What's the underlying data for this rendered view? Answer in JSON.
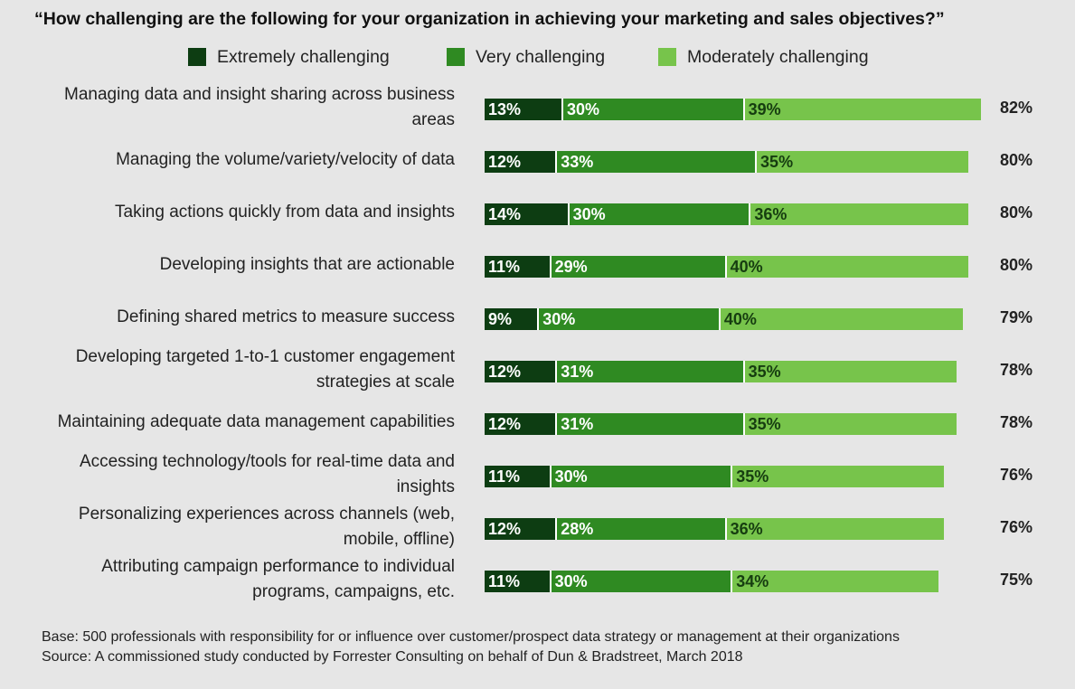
{
  "chart_data": {
    "type": "bar",
    "orientation": "horizontal",
    "stacked": true,
    "title": "“How challenging are the following for your organization in achieving your marketing and sales objectives?”",
    "categories": [
      "Managing data and insight sharing across business areas",
      "Managing the volume/variety/velocity of data",
      "Taking actions quickly from data and insights",
      "Developing insights that are actionable",
      "Defining shared metrics to measure success",
      "Developing targeted 1-to-1 customer engagement strategies at scale",
      "Maintaining adequate data management capabilities",
      "Accessing technology/tools for real-time data and insights",
      "Personalizing experiences across channels (web, mobile, offline)",
      "Attributing campaign performance to individual programs, campaigns, etc."
    ],
    "series": [
      {
        "name": "Extremely challenging",
        "color": "#0d3d12",
        "values": [
          13,
          12,
          14,
          11,
          9,
          12,
          12,
          11,
          12,
          11
        ]
      },
      {
        "name": "Very challenging",
        "color": "#2f8a22",
        "values": [
          30,
          33,
          30,
          29,
          30,
          31,
          31,
          30,
          28,
          30
        ]
      },
      {
        "name": "Moderately challenging",
        "color": "#77c44b",
        "values": [
          39,
          35,
          36,
          40,
          40,
          35,
          35,
          35,
          36,
          34
        ]
      }
    ],
    "totals": [
      82,
      80,
      80,
      80,
      79,
      78,
      78,
      76,
      76,
      75
    ],
    "value_unit": "%",
    "legend_position": "top",
    "grid": false
  },
  "footnotes": {
    "base": "Base: 500 professionals with responsibility for or influence over customer/prospect data strategy or management at their organizations",
    "source": "Source: A commissioned study conducted by Forrester Consulting on behalf of Dun & Bradstreet, March 2018"
  }
}
